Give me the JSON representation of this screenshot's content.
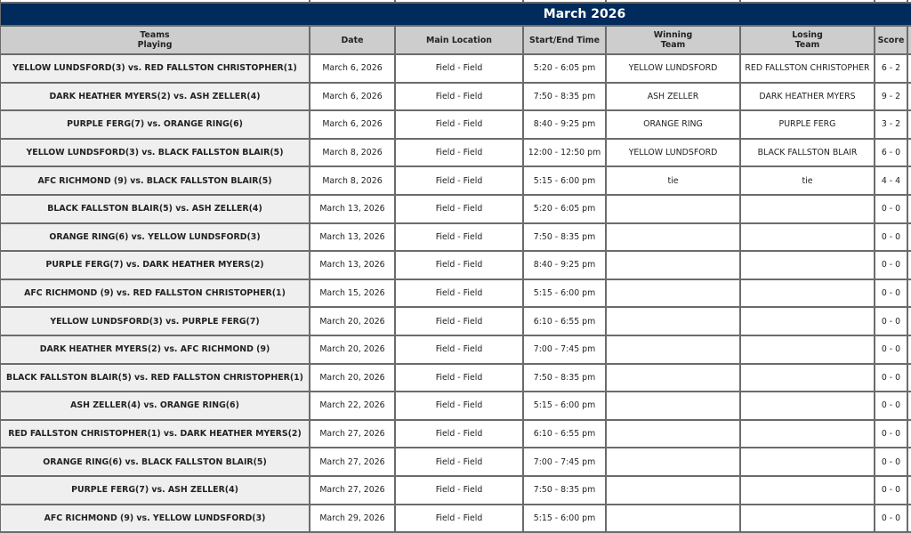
{
  "title": "March 2026",
  "headers": {
    "teams": "Teams\nPlaying",
    "date": "Date",
    "location": "Main Location",
    "time": "Start/End Time",
    "winning": "Winning\nTeam",
    "losing": "Losing\nTeam",
    "score": "Score"
  },
  "colors": {
    "title_bg": "#002b5c",
    "header_bg": "#cdcdcd",
    "team_cell_bg": "#efefef"
  },
  "games": [
    {
      "teams": "YELLOW LUNDSFORD(3) vs. RED FALLSTON CHRISTOPHER(1)",
      "date": "March 6, 2026",
      "location": "Field - Field",
      "time": "5:20 - 6:05 pm",
      "winner": "YELLOW LUNDSFORD",
      "loser": "RED FALLSTON CHRISTOPHER",
      "score": "6 - 2"
    },
    {
      "teams": "DARK HEATHER MYERS(2) vs. ASH ZELLER(4)",
      "date": "March 6, 2026",
      "location": "Field - Field",
      "time": "7:50 - 8:35 pm",
      "winner": "ASH ZELLER",
      "loser": "DARK HEATHER MYERS",
      "score": "9 - 2"
    },
    {
      "teams": "PURPLE FERG(7) vs. ORANGE RING(6)",
      "date": "March 6, 2026",
      "location": "Field - Field",
      "time": "8:40 - 9:25 pm",
      "winner": "ORANGE RING",
      "loser": "PURPLE FERG",
      "score": "3 - 2"
    },
    {
      "teams": "YELLOW LUNDSFORD(3) vs. BLACK FALLSTON BLAIR(5)",
      "date": "March 8, 2026",
      "location": "Field - Field",
      "time": "12:00 - 12:50 pm",
      "winner": "YELLOW LUNDSFORD",
      "loser": "BLACK FALLSTON BLAIR",
      "score": "6 - 0"
    },
    {
      "teams": "AFC RICHMOND (9) vs. BLACK FALLSTON BLAIR(5)",
      "date": "March 8, 2026",
      "location": "Field - Field",
      "time": "5:15 - 6:00 pm",
      "winner": "tie",
      "loser": "tie",
      "score": "4 - 4"
    },
    {
      "teams": "BLACK FALLSTON BLAIR(5) vs. ASH ZELLER(4)",
      "date": "March 13, 2026",
      "location": "Field - Field",
      "time": "5:20 - 6:05 pm",
      "winner": "",
      "loser": "",
      "score": "0 - 0"
    },
    {
      "teams": "ORANGE RING(6) vs. YELLOW LUNDSFORD(3)",
      "date": "March 13, 2026",
      "location": "Field - Field",
      "time": "7:50 - 8:35 pm",
      "winner": "",
      "loser": "",
      "score": "0 - 0"
    },
    {
      "teams": "PURPLE FERG(7) vs. DARK HEATHER MYERS(2)",
      "date": "March 13, 2026",
      "location": "Field - Field",
      "time": "8:40 - 9:25 pm",
      "winner": "",
      "loser": "",
      "score": "0 - 0"
    },
    {
      "teams": "AFC RICHMOND (9) vs. RED FALLSTON CHRISTOPHER(1)",
      "date": "March 15, 2026",
      "location": "Field - Field",
      "time": "5:15 - 6:00 pm",
      "winner": "",
      "loser": "",
      "score": "0 - 0"
    },
    {
      "teams": "YELLOW LUNDSFORD(3) vs. PURPLE FERG(7)",
      "date": "March 20, 2026",
      "location": "Field - Field",
      "time": "6:10 - 6:55 pm",
      "winner": "",
      "loser": "",
      "score": "0 - 0"
    },
    {
      "teams": "DARK HEATHER MYERS(2) vs. AFC RICHMOND (9)",
      "date": "March 20, 2026",
      "location": "Field - Field",
      "time": "7:00 - 7:45 pm",
      "winner": "",
      "loser": "",
      "score": "0 - 0"
    },
    {
      "teams": "BLACK FALLSTON BLAIR(5) vs. RED FALLSTON CHRISTOPHER(1)",
      "date": "March 20, 2026",
      "location": "Field - Field",
      "time": "7:50 - 8:35 pm",
      "winner": "",
      "loser": "",
      "score": "0 - 0"
    },
    {
      "teams": "ASH ZELLER(4) vs. ORANGE RING(6)",
      "date": "March 22, 2026",
      "location": "Field - Field",
      "time": "5:15 - 6:00 pm",
      "winner": "",
      "loser": "",
      "score": "0 - 0"
    },
    {
      "teams": "RED FALLSTON CHRISTOPHER(1) vs. DARK HEATHER MYERS(2)",
      "date": "March 27, 2026",
      "location": "Field - Field",
      "time": "6:10 - 6:55 pm",
      "winner": "",
      "loser": "",
      "score": "0 - 0"
    },
    {
      "teams": "ORANGE RING(6) vs. BLACK FALLSTON BLAIR(5)",
      "date": "March 27, 2026",
      "location": "Field - Field",
      "time": "7:00 - 7:45 pm",
      "winner": "",
      "loser": "",
      "score": "0 - 0"
    },
    {
      "teams": "PURPLE FERG(7) vs. ASH ZELLER(4)",
      "date": "March 27, 2026",
      "location": "Field - Field",
      "time": "7:50 - 8:35 pm",
      "winner": "",
      "loser": "",
      "score": "0 - 0"
    },
    {
      "teams": "AFC RICHMOND (9) vs. YELLOW LUNDSFORD(3)",
      "date": "March 29, 2026",
      "location": "Field - Field",
      "time": "5:15 - 6:00 pm",
      "winner": "",
      "loser": "",
      "score": "0 - 0"
    }
  ]
}
